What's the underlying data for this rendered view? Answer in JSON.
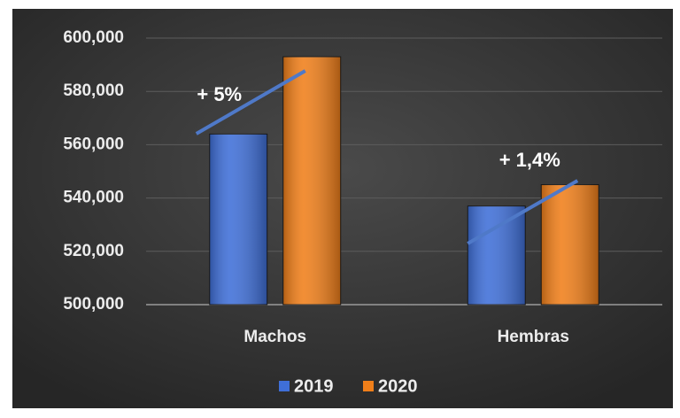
{
  "chart_data": {
    "type": "bar",
    "categories": [
      "Machos",
      "Hembras"
    ],
    "series": [
      {
        "name": "2019",
        "color": "#3f6fd8",
        "values": [
          564000,
          537000
        ]
      },
      {
        "name": "2020",
        "color": "#f07f1a",
        "values": [
          593000,
          545000
        ]
      }
    ],
    "annotations": [
      "+ 5%",
      "+ 1,4%"
    ],
    "ylim": [
      500000,
      600000
    ],
    "yticks": [
      {
        "value": 500000,
        "label": "500,000"
      },
      {
        "value": 520000,
        "label": "520,000"
      },
      {
        "value": 540000,
        "label": "540,000"
      },
      {
        "value": 560000,
        "label": "560,000"
      },
      {
        "value": 580000,
        "label": "580,000"
      },
      {
        "value": 600000,
        "label": "600,000"
      }
    ],
    "grid": true,
    "legend": "bottom"
  }
}
